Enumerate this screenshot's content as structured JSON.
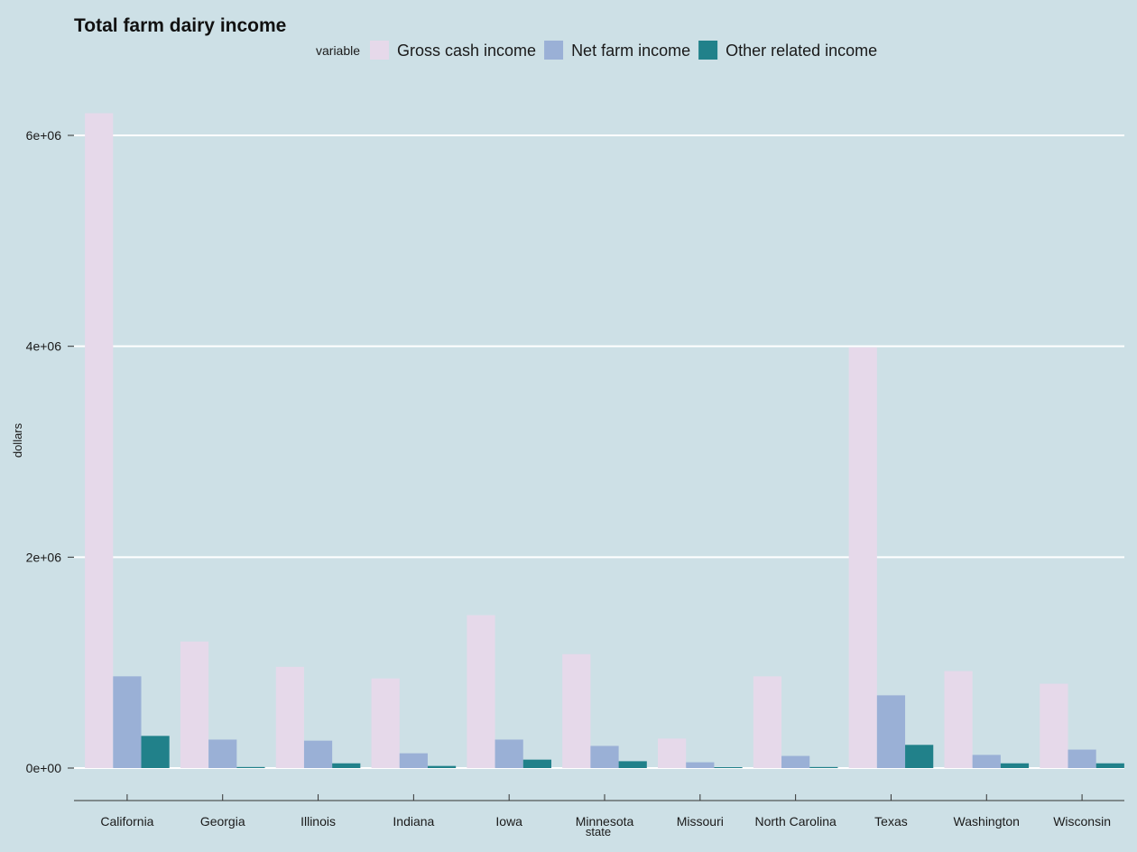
{
  "chart_data": {
    "type": "bar",
    "title": "Total farm dairy income",
    "xlabel": "state",
    "ylabel": "dollars",
    "categories": [
      "California",
      "Georgia",
      "Illinois",
      "Indiana",
      "Iowa",
      "Minnesota",
      "Missouri",
      "North Carolina",
      "Texas",
      "Washington",
      "Wisconsin"
    ],
    "legend_title": "variable",
    "legend_position": "top",
    "series": [
      {
        "name": "Gross cash income",
        "color": "#e6d9ea",
        "values": [
          6210000,
          1200000,
          960000,
          850000,
          1450000,
          1080000,
          280000,
          870000,
          3990000,
          920000,
          800000
        ]
      },
      {
        "name": "Net farm income",
        "color": "#9ab0d6",
        "values": [
          870000,
          270000,
          260000,
          140000,
          270000,
          210000,
          55000,
          115000,
          690000,
          125000,
          175000
        ]
      },
      {
        "name": "Other related income",
        "color": "#21818a",
        "values": [
          305000,
          10000,
          45000,
          20000,
          80000,
          65000,
          5000,
          10000,
          220000,
          45000,
          45000
        ]
      }
    ],
    "y_ticks": [
      0,
      2000000,
      4000000,
      6000000
    ],
    "y_tick_labels": [
      "0e+00",
      "2e+06",
      "4e+06",
      "6e+06"
    ],
    "ylim": [
      0,
      6210000
    ],
    "grid": "horizontal major lines"
  }
}
